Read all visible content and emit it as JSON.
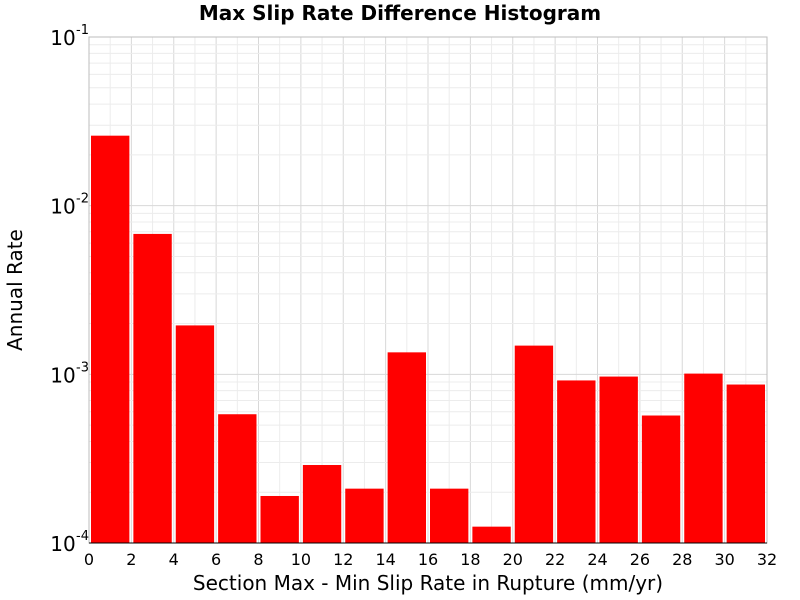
{
  "chart_data": {
    "type": "bar",
    "title": "Max Slip Rate Difference Histogram",
    "xlabel": "Section Max - Min Slip Rate in Rupture (mm/yr)",
    "ylabel": "Annual Rate",
    "xlim": [
      0,
      32
    ],
    "ylim": [
      0.0001,
      0.1
    ],
    "yscale": "log",
    "grid": true,
    "bar_color": "#ff0000",
    "bin_width": 2,
    "x_ticks": [
      "0",
      "2",
      "4",
      "6",
      "8",
      "10",
      "12",
      "14",
      "16",
      "18",
      "20",
      "22",
      "24",
      "26",
      "28",
      "30",
      "32"
    ],
    "y_ticks": [
      {
        "value": 0.0001,
        "base": "10",
        "exp": "-4"
      },
      {
        "value": 0.001,
        "base": "10",
        "exp": "-3"
      },
      {
        "value": 0.01,
        "base": "10",
        "exp": "-2"
      },
      {
        "value": 0.1,
        "base": "10",
        "exp": "-1"
      }
    ],
    "bins": [
      {
        "x": 1,
        "value": 0.026
      },
      {
        "x": 3,
        "value": 0.0068
      },
      {
        "x": 5,
        "value": 0.00195
      },
      {
        "x": 7,
        "value": 0.00058
      },
      {
        "x": 9,
        "value": 0.00019
      },
      {
        "x": 11,
        "value": 0.00029
      },
      {
        "x": 13,
        "value": 0.00021
      },
      {
        "x": 15,
        "value": 0.00135
      },
      {
        "x": 17,
        "value": 0.00021
      },
      {
        "x": 19,
        "value": 0.000125
      },
      {
        "x": 21,
        "value": 0.00148
      },
      {
        "x": 23,
        "value": 0.00092
      },
      {
        "x": 25,
        "value": 0.00097
      },
      {
        "x": 27,
        "value": 0.00057
      },
      {
        "x": 29,
        "value": 0.00101
      },
      {
        "x": 31,
        "value": 0.00087
      }
    ]
  }
}
